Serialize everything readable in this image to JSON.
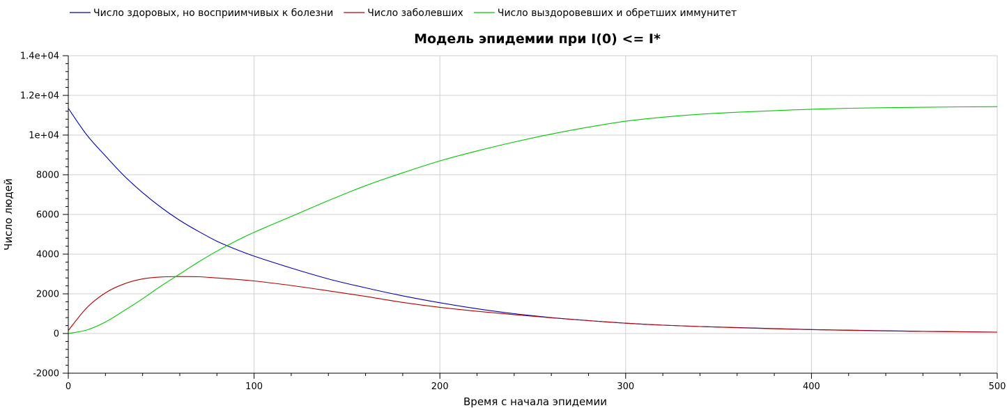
{
  "chart_data": {
    "type": "line",
    "title": "Модель эпидемии при I(0) <= I*",
    "xlabel": "Время с начала эпидемии",
    "ylabel": "Число людей",
    "xlim": [
      0,
      500
    ],
    "ylim": [
      -2000,
      14000
    ],
    "x_ticks": [
      {
        "value": 0,
        "label": "0"
      },
      {
        "value": 100,
        "label": "100"
      },
      {
        "value": 200,
        "label": "200"
      },
      {
        "value": 300,
        "label": "300"
      },
      {
        "value": 400,
        "label": "400"
      },
      {
        "value": 500,
        "label": "500"
      }
    ],
    "y_ticks": [
      {
        "value": -2000,
        "label": "-2000"
      },
      {
        "value": 0,
        "label": "0"
      },
      {
        "value": 2000,
        "label": "2000"
      },
      {
        "value": 4000,
        "label": "4000"
      },
      {
        "value": 6000,
        "label": "6000"
      },
      {
        "value": 8000,
        "label": "8000"
      },
      {
        "value": 10000,
        "label": "1e+04"
      },
      {
        "value": 12000,
        "label": "1.2e+04"
      },
      {
        "value": 14000,
        "label": "1.4e+04"
      }
    ],
    "grid": true,
    "legend_position": "top-left",
    "x": [
      0,
      10,
      20,
      30,
      40,
      50,
      60,
      70,
      80,
      90,
      100,
      120,
      140,
      160,
      180,
      200,
      220,
      240,
      260,
      280,
      300,
      320,
      340,
      360,
      380,
      400,
      420,
      440,
      460,
      480,
      500
    ],
    "series": [
      {
        "name": "Число здоровых, но восприимчивых к болезни",
        "color": "#0000b4",
        "values": [
          11350,
          10000,
          8950,
          7950,
          7100,
          6350,
          5700,
          5150,
          4650,
          4250,
          3900,
          3300,
          2750,
          2300,
          1900,
          1550,
          1250,
          1000,
          800,
          650,
          520,
          420,
          350,
          300,
          250,
          200,
          170,
          140,
          110,
          90,
          70
        ]
      },
      {
        "name": "Число заболевших",
        "color": "#b40000",
        "values": [
          150,
          1300,
          2050,
          2500,
          2750,
          2850,
          2870,
          2860,
          2800,
          2730,
          2650,
          2420,
          2150,
          1870,
          1570,
          1320,
          1120,
          950,
          790,
          650,
          520,
          420,
          350,
          290,
          240,
          195,
          160,
          130,
          105,
          85,
          65
        ]
      },
      {
        "name": "Число выздоровевших и обретших иммунитет",
        "color": "#00c800",
        "values": [
          0,
          180,
          580,
          1150,
          1750,
          2400,
          3000,
          3600,
          4150,
          4650,
          5100,
          5900,
          6700,
          7450,
          8100,
          8700,
          9200,
          9650,
          10050,
          10400,
          10700,
          10900,
          11050,
          11150,
          11230,
          11300,
          11350,
          11380,
          11400,
          11420,
          11430
        ]
      }
    ]
  }
}
